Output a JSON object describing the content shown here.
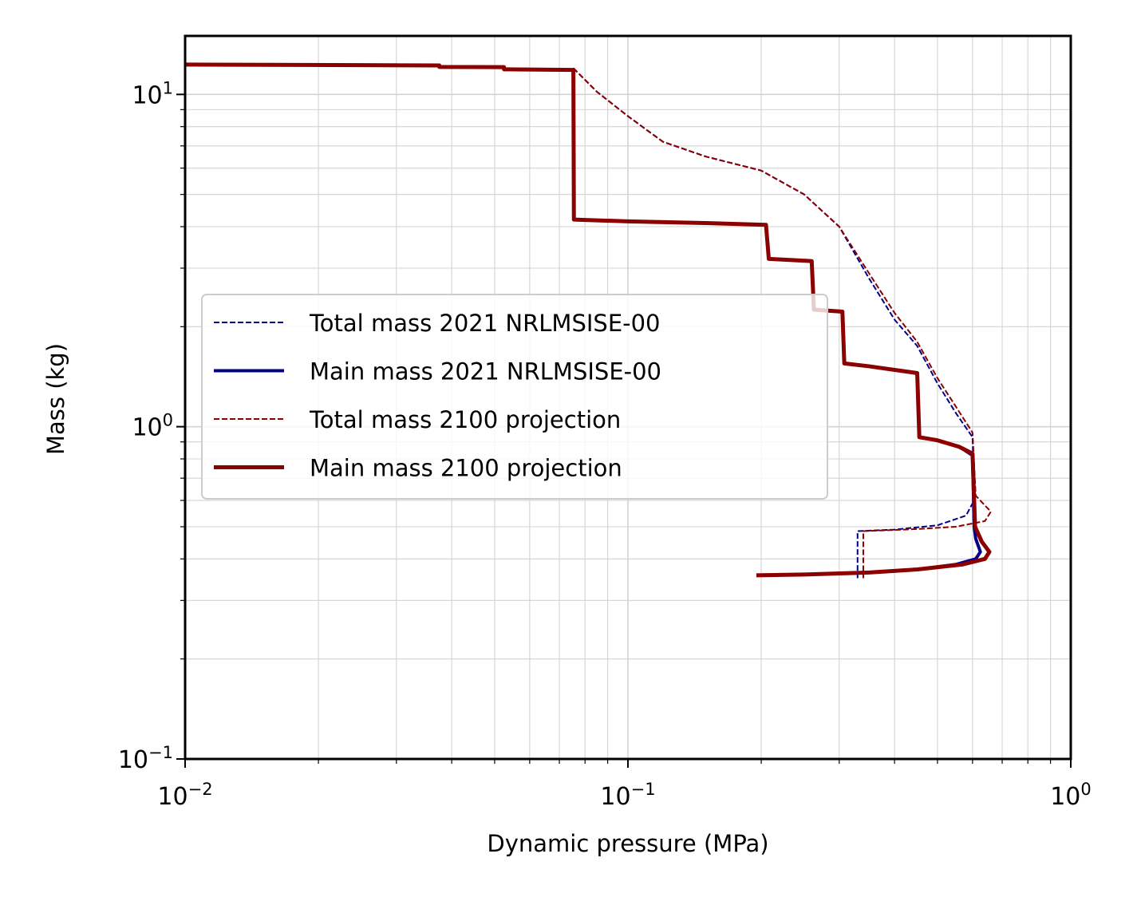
{
  "chart_data": {
    "type": "line",
    "title": "",
    "xlabel": "Dynamic pressure (MPa)",
    "ylabel": "Mass (kg)",
    "xscale": "log",
    "yscale": "log",
    "xlim": [
      0.01,
      1.0
    ],
    "ylim": [
      0.1,
      15.0
    ],
    "grid": true,
    "legend_position": "center-left",
    "x_ticks": [
      {
        "value": 0.01,
        "base": "10",
        "exp": "−2"
      },
      {
        "value": 0.1,
        "base": "10",
        "exp": "−1"
      },
      {
        "value": 1.0,
        "base": "10",
        "exp": "0"
      }
    ],
    "y_ticks": [
      {
        "value": 0.1,
        "base": "10",
        "exp": "−1"
      },
      {
        "value": 1.0,
        "base": "10",
        "exp": "0"
      },
      {
        "value": 10.0,
        "base": "10",
        "exp": "1"
      }
    ],
    "series": [
      {
        "name": "Total mass 2021 NRLMSISE-00",
        "color": "#00008b",
        "style": "dashed",
        "width": 2,
        "points": [
          [
            0.0753,
            12.0
          ],
          [
            0.085,
            10.2
          ],
          [
            0.1,
            8.6
          ],
          [
            0.12,
            7.2
          ],
          [
            0.15,
            6.5
          ],
          [
            0.2,
            5.9
          ],
          [
            0.25,
            5.0
          ],
          [
            0.3,
            4.0
          ],
          [
            0.35,
            2.8
          ],
          [
            0.4,
            2.1
          ],
          [
            0.45,
            1.75
          ],
          [
            0.5,
            1.35
          ],
          [
            0.55,
            1.1
          ],
          [
            0.6,
            0.93
          ],
          [
            0.605,
            0.6
          ],
          [
            0.58,
            0.54
          ],
          [
            0.5,
            0.505
          ],
          [
            0.4,
            0.49
          ],
          [
            0.33,
            0.485
          ],
          [
            0.33,
            0.35
          ]
        ]
      },
      {
        "name": "Main mass 2021 NRLMSISE-00",
        "color": "#00008b",
        "style": "solid",
        "width": 4,
        "points": [
          [
            0.01,
            12.3
          ],
          [
            0.025,
            12.25
          ],
          [
            0.0375,
            12.22
          ],
          [
            0.0375,
            12.1
          ],
          [
            0.0525,
            12.08
          ],
          [
            0.0525,
            11.9
          ],
          [
            0.0753,
            11.85
          ],
          [
            0.0755,
            4.2
          ],
          [
            0.1,
            4.15
          ],
          [
            0.15,
            4.1
          ],
          [
            0.205,
            4.05
          ],
          [
            0.208,
            3.2
          ],
          [
            0.26,
            3.15
          ],
          [
            0.263,
            2.25
          ],
          [
            0.305,
            2.22
          ],
          [
            0.308,
            1.55
          ],
          [
            0.35,
            1.52
          ],
          [
            0.45,
            1.45
          ],
          [
            0.455,
            0.93
          ],
          [
            0.5,
            0.91
          ],
          [
            0.56,
            0.87
          ],
          [
            0.6,
            0.82
          ],
          [
            0.605,
            0.5
          ],
          [
            0.61,
            0.46
          ],
          [
            0.625,
            0.42
          ],
          [
            0.61,
            0.4
          ],
          [
            0.55,
            0.385
          ],
          [
            0.45,
            0.372
          ],
          [
            0.35,
            0.364
          ],
          [
            0.25,
            0.359
          ],
          [
            0.195,
            0.357
          ]
        ]
      },
      {
        "name": "Total mass 2100 projection",
        "color": "#8b0000",
        "style": "dashed",
        "width": 2,
        "points": [
          [
            0.0753,
            12.0
          ],
          [
            0.085,
            10.2
          ],
          [
            0.1,
            8.6
          ],
          [
            0.12,
            7.2
          ],
          [
            0.15,
            6.5
          ],
          [
            0.2,
            5.9
          ],
          [
            0.25,
            5.0
          ],
          [
            0.3,
            4.0
          ],
          [
            0.35,
            2.9
          ],
          [
            0.4,
            2.2
          ],
          [
            0.45,
            1.8
          ],
          [
            0.5,
            1.4
          ],
          [
            0.55,
            1.15
          ],
          [
            0.6,
            0.96
          ],
          [
            0.61,
            0.62
          ],
          [
            0.66,
            0.555
          ],
          [
            0.64,
            0.52
          ],
          [
            0.55,
            0.5
          ],
          [
            0.45,
            0.492
          ],
          [
            0.34,
            0.485
          ],
          [
            0.34,
            0.35
          ]
        ]
      },
      {
        "name": "Main mass 2100 projection",
        "color": "#8b0000",
        "style": "solid",
        "width": 5,
        "points": [
          [
            0.01,
            12.3
          ],
          [
            0.025,
            12.25
          ],
          [
            0.0375,
            12.22
          ],
          [
            0.0375,
            12.1
          ],
          [
            0.0525,
            12.08
          ],
          [
            0.0525,
            11.9
          ],
          [
            0.0753,
            11.85
          ],
          [
            0.0755,
            4.2
          ],
          [
            0.1,
            4.15
          ],
          [
            0.15,
            4.1
          ],
          [
            0.205,
            4.05
          ],
          [
            0.208,
            3.2
          ],
          [
            0.26,
            3.15
          ],
          [
            0.263,
            2.25
          ],
          [
            0.305,
            2.22
          ],
          [
            0.308,
            1.55
          ],
          [
            0.35,
            1.52
          ],
          [
            0.45,
            1.45
          ],
          [
            0.455,
            0.93
          ],
          [
            0.5,
            0.91
          ],
          [
            0.56,
            0.87
          ],
          [
            0.6,
            0.83
          ],
          [
            0.608,
            0.5
          ],
          [
            0.63,
            0.45
          ],
          [
            0.655,
            0.42
          ],
          [
            0.64,
            0.4
          ],
          [
            0.57,
            0.385
          ],
          [
            0.45,
            0.372
          ],
          [
            0.35,
            0.364
          ],
          [
            0.25,
            0.359
          ],
          [
            0.195,
            0.357
          ]
        ]
      }
    ]
  }
}
